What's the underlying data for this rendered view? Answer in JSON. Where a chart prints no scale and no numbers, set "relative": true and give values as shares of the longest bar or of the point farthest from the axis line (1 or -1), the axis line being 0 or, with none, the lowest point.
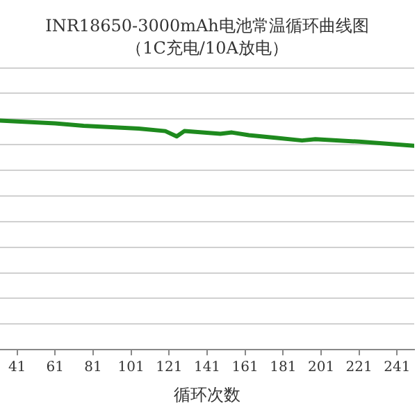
{
  "chart_data": {
    "type": "line",
    "title": "INR18650-3000mAh电池常温循环曲线图",
    "subtitle": "（1C充电/10A放电）",
    "xlabel": "循环次数",
    "relative": true,
    "grid": "y",
    "legend": false,
    "marker": "none",
    "line_style": "solid",
    "xlim": [
      32,
      250
    ],
    "xticks": [
      41,
      61,
      81,
      101,
      121,
      141,
      161,
      181,
      201,
      221,
      241
    ],
    "series": [
      {
        "color": "#1e8a1e",
        "x": [
          32,
          61,
          76,
          105,
          119,
          125,
          129,
          148,
          154,
          163,
          177,
          191,
          198,
          221,
          250
        ],
        "values": [
          1,
          0.988,
          0.977,
          0.965,
          0.954,
          0.931,
          0.954,
          0.942,
          0.948,
          0.936,
          0.925,
          0.913,
          0.919,
          0.908,
          0.89
        ]
      }
    ]
  }
}
